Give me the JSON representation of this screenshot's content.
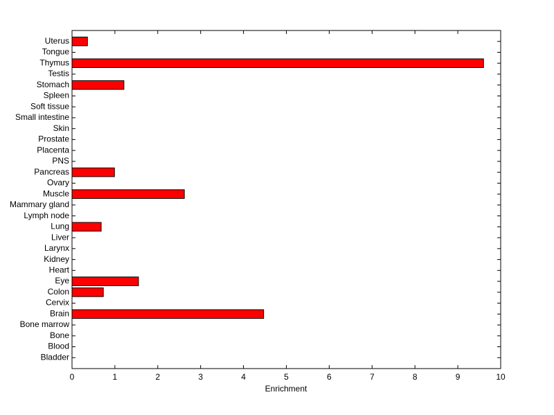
{
  "chart_data": {
    "type": "barh",
    "xlabel": "Enrichment",
    "categories": [
      "Uterus",
      "Tongue",
      "Thymus",
      "Testis",
      "Stomach",
      "Spleen",
      "Soft tissue",
      "Small intestine",
      "Skin",
      "Prostate",
      "Placenta",
      "PNS",
      "Pancreas",
      "Ovary",
      "Muscle",
      "Mammary gland",
      "Lymph node",
      "Lung",
      "Liver",
      "Larynx",
      "Kidney",
      "Heart",
      "Eye",
      "Colon",
      "Cervix",
      "Brain",
      "Bone marrow",
      "Bone",
      "Blood",
      "Bladder"
    ],
    "values": [
      0.36,
      0,
      9.6,
      0,
      1.21,
      0,
      0,
      0,
      0,
      0,
      0,
      0,
      0.99,
      0,
      2.62,
      0,
      0,
      0.68,
      0,
      0,
      0,
      0,
      1.55,
      0.73,
      0,
      4.47,
      0,
      0,
      0,
      0
    ],
    "color": "#ff0000",
    "xlim": [
      0,
      10
    ],
    "xticks": [
      0,
      1,
      2,
      3,
      4,
      5,
      6,
      7,
      8,
      9,
      10
    ],
    "grid": false
  }
}
